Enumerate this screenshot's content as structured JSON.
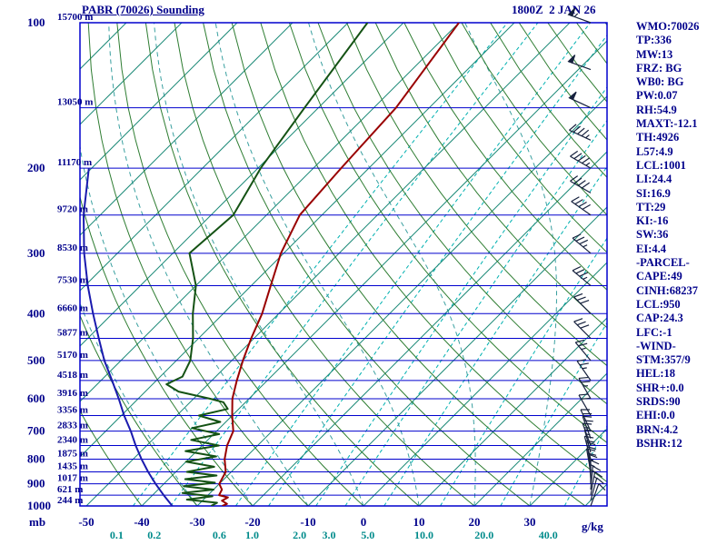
{
  "title": "PABR (70026) Sounding",
  "timestamp": "1800Z  2 JAN 26",
  "axes": {
    "pressure_unit": "mb",
    "mixing_unit": "g/kg",
    "pressure_labels": [
      100,
      200,
      300,
      400,
      500,
      600,
      700,
      800,
      900,
      1000
    ],
    "height_labels": [
      {
        "p": 100,
        "label": "15700 m"
      },
      {
        "p": 150,
        "label": "13050 m"
      },
      {
        "p": 200,
        "label": "11170 m"
      },
      {
        "p": 250,
        "label": "9720 m"
      },
      {
        "p": 300,
        "label": "8530 m"
      },
      {
        "p": 350,
        "label": "7530 m"
      },
      {
        "p": 400,
        "label": "6660 m"
      },
      {
        "p": 450,
        "label": "5877 m"
      },
      {
        "p": 500,
        "label": "5170 m"
      },
      {
        "p": 550,
        "label": "4518 m"
      },
      {
        "p": 600,
        "label": "3916 m"
      },
      {
        "p": 650,
        "label": "3356 m"
      },
      {
        "p": 700,
        "label": "2833 m"
      },
      {
        "p": 750,
        "label": "2340 m"
      },
      {
        "p": 800,
        "label": "1875 m"
      },
      {
        "p": 850,
        "label": "1435 m"
      },
      {
        "p": 900,
        "label": "1017 m"
      },
      {
        "p": 950,
        "label": "621 m"
      },
      {
        "p": 1000,
        "label": "244 m"
      }
    ],
    "temp_labels": [
      -50,
      -40,
      -30,
      -20,
      -10,
      0,
      10,
      20,
      30
    ],
    "mixing_labels": [
      "0.1",
      "0.2",
      "0.6",
      "1.0",
      "2.0",
      "3.0",
      "5.0",
      "10.0",
      "20.0",
      "40.0"
    ]
  },
  "info_panel": [
    "WMO:70026",
    "TP:336",
    "MW:13",
    "FRZ: BG",
    "WB0: BG",
    "PW:0.07",
    "RH:54.9",
    "MAXT:-12.1",
    "TH:4926",
    "L57:4.9",
    "LCL:1001",
    "LI:24.4",
    "SI:16.9",
    "TT:29",
    "KI:-16",
    "SW:36",
    "EI:4.4",
    "-PARCEL-",
    "CAPE:49",
    "CINH:68237",
    "LCL:950",
    "CAP:24.3",
    "LFC:-1",
    "-WIND-",
    "STM:357/9",
    "HEL:18",
    "SHR+:0.0",
    "SRDS:90",
    "EHI:0.0",
    "BRN:4.2",
    "BSHR:12"
  ],
  "chart_data": {
    "type": "line",
    "diagram": "skew-t-log-p",
    "title": "PABR (70026) Sounding 1800Z 2 JAN 26",
    "pressure_range_mb": [
      100,
      1000
    ],
    "temp_axis_c": [
      -50,
      40
    ],
    "grid": "on",
    "series": [
      {
        "name": "temperature",
        "color": "#990000",
        "points": [
          [
            1000,
            -25.5
          ],
          [
            990,
            -25.0
          ],
          [
            975,
            -26.5
          ],
          [
            960,
            -26.0
          ],
          [
            950,
            -28.0
          ],
          [
            925,
            -28.5
          ],
          [
            900,
            -30.0
          ],
          [
            875,
            -30.5
          ],
          [
            850,
            -31.0
          ],
          [
            800,
            -33.5
          ],
          [
            750,
            -35.5
          ],
          [
            700,
            -37.0
          ],
          [
            650,
            -40.0
          ],
          [
            600,
            -43.0
          ],
          [
            550,
            -45.5
          ],
          [
            500,
            -48.0
          ],
          [
            450,
            -50.5
          ],
          [
            400,
            -53.0
          ],
          [
            350,
            -56.5
          ],
          [
            300,
            -60.5
          ],
          [
            250,
            -64.0
          ],
          [
            200,
            -65.0
          ],
          [
            150,
            -66.0
          ],
          [
            100,
            -70.0
          ]
        ]
      },
      {
        "name": "dewpoint",
        "color": "#145214",
        "points": [
          [
            1000,
            -27.5
          ],
          [
            985,
            -27.0
          ],
          [
            970,
            -33.0
          ],
          [
            955,
            -29.0
          ],
          [
            940,
            -35.0
          ],
          [
            925,
            -30.0
          ],
          [
            910,
            -36.0
          ],
          [
            895,
            -31.0
          ],
          [
            880,
            -37.0
          ],
          [
            865,
            -32.0
          ],
          [
            850,
            -38.0
          ],
          [
            830,
            -34.0
          ],
          [
            810,
            -40.0
          ],
          [
            790,
            -35.5
          ],
          [
            770,
            -42.0
          ],
          [
            750,
            -37.0
          ],
          [
            730,
            -43.0
          ],
          [
            710,
            -39.0
          ],
          [
            690,
            -45.0
          ],
          [
            670,
            -41.0
          ],
          [
            650,
            -46.0
          ],
          [
            630,
            -42.0
          ],
          [
            610,
            -44.0
          ],
          [
            600,
            -47.0
          ],
          [
            580,
            -54.0
          ],
          [
            560,
            -57.5
          ],
          [
            540,
            -56.0
          ],
          [
            500,
            -57.5
          ],
          [
            450,
            -61.0
          ],
          [
            400,
            -65.5
          ],
          [
            350,
            -70.0
          ],
          [
            300,
            -77.0
          ],
          [
            250,
            -76.0
          ],
          [
            200,
            -79.5
          ],
          [
            150,
            -82.5
          ],
          [
            100,
            -86.5
          ]
        ]
      },
      {
        "name": "parcel",
        "color": "#1a1aae",
        "points": [
          [
            1000,
            -34.5
          ],
          [
            950,
            -38.0
          ],
          [
            900,
            -41.5
          ],
          [
            850,
            -45.0
          ],
          [
            800,
            -48.5
          ],
          [
            750,
            -52.0
          ],
          [
            700,
            -55.5
          ],
          [
            650,
            -59.5
          ],
          [
            600,
            -63.5
          ],
          [
            550,
            -68.0
          ],
          [
            500,
            -73.0
          ],
          [
            450,
            -78.0
          ],
          [
            400,
            -83.5
          ],
          [
            350,
            -89.5
          ],
          [
            300,
            -96.0
          ],
          [
            250,
            -103.0
          ],
          [
            200,
            -110.5
          ]
        ]
      }
    ],
    "winds": [
      {
        "p": 1000,
        "dir": 20,
        "spd": 10
      },
      {
        "p": 975,
        "dir": 15,
        "spd": 10
      },
      {
        "p": 950,
        "dir": 10,
        "spd": 15
      },
      {
        "p": 925,
        "dir": 5,
        "spd": 15
      },
      {
        "p": 900,
        "dir": 360,
        "spd": 15
      },
      {
        "p": 875,
        "dir": 355,
        "spd": 15
      },
      {
        "p": 850,
        "dir": 350,
        "spd": 20
      },
      {
        "p": 825,
        "dir": 350,
        "spd": 20
      },
      {
        "p": 800,
        "dir": 345,
        "spd": 20
      },
      {
        "p": 775,
        "dir": 345,
        "spd": 15
      },
      {
        "p": 750,
        "dir": 340,
        "spd": 15
      },
      {
        "p": 725,
        "dir": 340,
        "spd": 20
      },
      {
        "p": 700,
        "dir": 335,
        "spd": 20
      },
      {
        "p": 650,
        "dir": 330,
        "spd": 20
      },
      {
        "p": 600,
        "dir": 330,
        "spd": 25
      },
      {
        "p": 550,
        "dir": 325,
        "spd": 25
      },
      {
        "p": 500,
        "dir": 320,
        "spd": 25
      },
      {
        "p": 450,
        "dir": 315,
        "spd": 30
      },
      {
        "p": 400,
        "dir": 315,
        "spd": 30
      },
      {
        "p": 350,
        "dir": 310,
        "spd": 35
      },
      {
        "p": 300,
        "dir": 310,
        "spd": 35
      },
      {
        "p": 250,
        "dir": 305,
        "spd": 40
      },
      {
        "p": 225,
        "dir": 300,
        "spd": 40
      },
      {
        "p": 200,
        "dir": 300,
        "spd": 45
      },
      {
        "p": 175,
        "dir": 295,
        "spd": 45
      },
      {
        "p": 150,
        "dir": 295,
        "spd": 50
      },
      {
        "p": 125,
        "dir": 290,
        "spd": 50
      },
      {
        "p": 100,
        "dir": 290,
        "spd": 55
      }
    ],
    "isotherms_c": {
      "min": -130,
      "max": 40,
      "step": 10
    },
    "dry_adiabats_c": {
      "min": -40,
      "max": 180,
      "step": 10
    },
    "moist_adiabats_c": [
      -30,
      -20,
      -10,
      0,
      10,
      20,
      30
    ],
    "mixing_ratio_gkg": [
      0.1,
      0.2,
      0.6,
      1.0,
      2.0,
      3.0,
      5.0,
      10.0,
      20.0,
      40.0
    ]
  },
  "colors": {
    "frame": "#0000cd",
    "labels": "#00008b",
    "isotherm": "#1d8a78",
    "dry_adiabat": "#2e7d32",
    "moist_adiabat": "#3aa0a0",
    "mixing": "#00b0b0",
    "mixing_label": "#008b8b",
    "barb": "#16213e",
    "background": "#ffffff"
  }
}
